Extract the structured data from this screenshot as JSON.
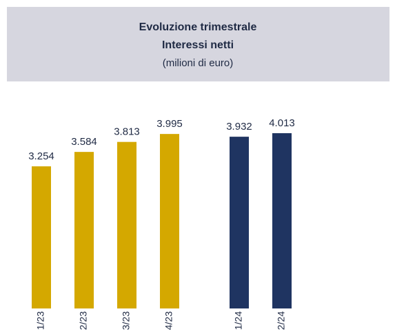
{
  "chart_data": {
    "type": "bar",
    "title": "Evoluzione trimestrale",
    "subtitle": "Interessi netti",
    "unit_note": "(milioni di euro)",
    "categories": [
      "1/23",
      "2/23",
      "3/23",
      "4/23",
      "1/24",
      "2/24"
    ],
    "values": [
      3254,
      3584,
      3813,
      3995,
      3932,
      4013
    ],
    "value_labels": [
      "3.254",
      "3.584",
      "3.813",
      "3.995",
      "3.932",
      "4.013"
    ],
    "colors": [
      "#d4a800",
      "#d4a800",
      "#d4a800",
      "#d4a800",
      "#1f3461",
      "#1f3461"
    ]
  }
}
